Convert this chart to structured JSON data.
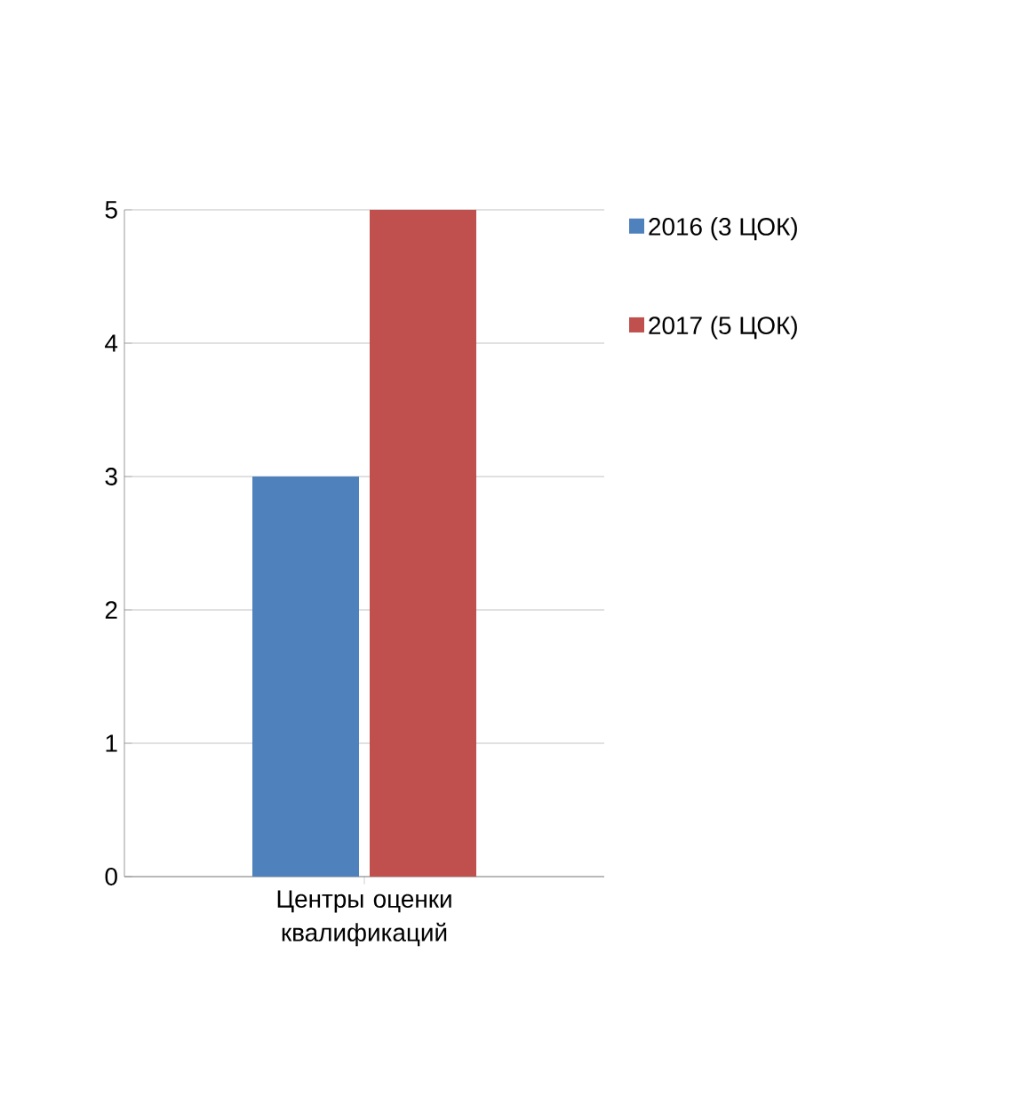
{
  "chart_data": {
    "type": "bar",
    "categories": [
      "Центры оценки квалификаций"
    ],
    "series": [
      {
        "name": "2016 (3 ЦОК)",
        "color": "#4f81bd",
        "values": [
          3
        ]
      },
      {
        "name": "2017 (5 ЦОК)",
        "color": "#c0504d",
        "values": [
          5
        ]
      }
    ],
    "ylim": [
      0,
      5
    ],
    "yticks": [
      0,
      1,
      2,
      3,
      4,
      5
    ],
    "grid": "y",
    "legend": "right"
  }
}
